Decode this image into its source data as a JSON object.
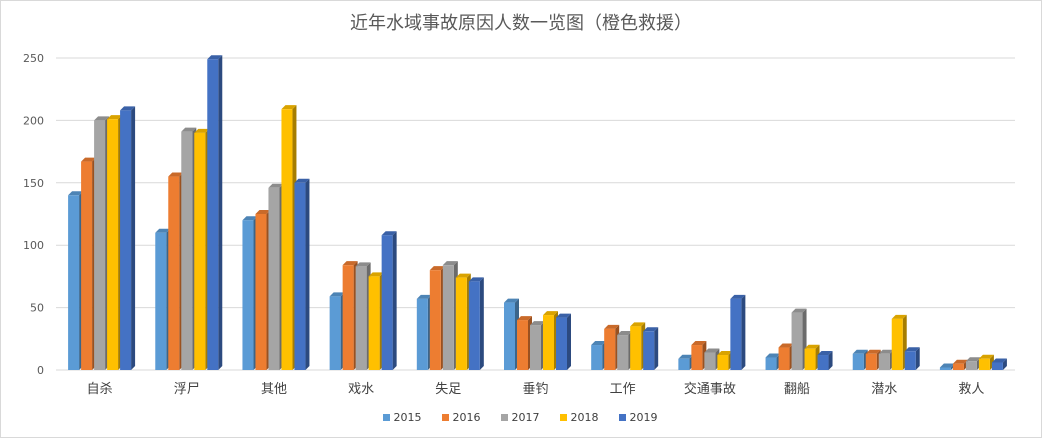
{
  "chart_data": {
    "type": "bar",
    "title": "近年水域事故原因人数一览图（橙色救援）",
    "categories": [
      "自杀",
      "浮尸",
      "其他",
      "戏水",
      "失足",
      "垂钓",
      "工作",
      "交通事故",
      "翻船",
      "潜水",
      "救人"
    ],
    "series": [
      {
        "name": "2015",
        "color": "#5b9bd5",
        "values": [
          140,
          110,
          120,
          59,
          57,
          54,
          20,
          9,
          10,
          13,
          2
        ]
      },
      {
        "name": "2016",
        "color": "#ed7d31",
        "values": [
          167,
          155,
          125,
          84,
          80,
          40,
          33,
          20,
          18,
          13,
          5
        ]
      },
      {
        "name": "2017",
        "color": "#a5a5a5",
        "values": [
          200,
          191,
          146,
          83,
          84,
          36,
          28,
          14,
          46,
          13,
          7
        ]
      },
      {
        "name": "2018",
        "color": "#ffc000",
        "values": [
          201,
          190,
          209,
          75,
          74,
          44,
          35,
          12,
          17,
          41,
          9
        ]
      },
      {
        "name": "2019",
        "color": "#4472c4",
        "values": [
          208,
          249,
          150,
          108,
          71,
          42,
          31,
          57,
          12,
          15,
          6
        ]
      }
    ],
    "ylim": [
      0,
      250
    ],
    "yticks": [
      0,
      50,
      100,
      150,
      200,
      250
    ],
    "grid": true,
    "legend": "bottom"
  }
}
